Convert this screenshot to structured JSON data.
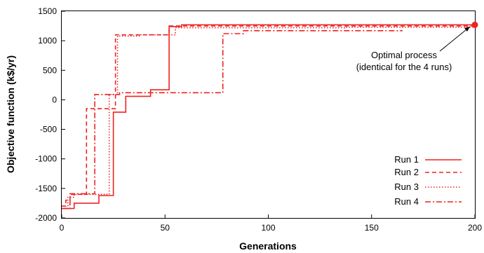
{
  "chart_data": {
    "type": "line",
    "title": "",
    "xlabel": "Generations",
    "ylabel": "Objective function (k$/yr)",
    "xlim": [
      0,
      200
    ],
    "ylim": [
      -2000,
      1500
    ],
    "xticks": [
      0,
      50,
      100,
      150,
      200
    ],
    "yticks": [
      -2000,
      -1500,
      -1000,
      -500,
      0,
      500,
      1000,
      1500
    ],
    "grid": false,
    "legend_position": "bottom-right",
    "line_color": "#ee2222",
    "series": [
      {
        "name": "Run 1",
        "dash": "solid",
        "x": [
          0,
          6,
          6,
          18,
          18,
          25,
          25,
          31,
          31,
          43,
          43,
          52,
          52,
          58,
          58,
          200
        ],
        "y": [
          -1840,
          -1840,
          -1750,
          -1750,
          -1620,
          -1620,
          -210,
          -210,
          60,
          60,
          170,
          170,
          1240,
          1240,
          1270,
          1270
        ]
      },
      {
        "name": "Run 2",
        "dash": "dashed",
        "x": [
          0,
          2,
          2,
          4,
          4,
          12,
          12,
          26,
          26,
          35,
          35,
          52,
          52,
          200
        ],
        "y": [
          -1800,
          -1800,
          -1700,
          -1700,
          -1600,
          -1600,
          -150,
          -150,
          1100,
          1100,
          1100,
          1100,
          1250,
          1250
        ]
      },
      {
        "name": "Run 3",
        "dash": "dotted",
        "x": [
          0,
          3,
          3,
          6,
          6,
          23,
          23,
          27,
          27,
          38,
          38,
          55,
          55,
          137,
          137,
          200
        ],
        "y": [
          -1840,
          -1840,
          -1650,
          -1650,
          -1600,
          -1600,
          90,
          90,
          1080,
          1080,
          1100,
          1100,
          1220,
          1220,
          1230,
          1230
        ]
      },
      {
        "name": "Run 4",
        "dash": "dashdot",
        "x": [
          0,
          4,
          4,
          16,
          16,
          28,
          28,
          78,
          78,
          88,
          88,
          165
        ],
        "y": [
          -1840,
          -1840,
          -1590,
          -1590,
          90,
          90,
          120,
          120,
          1120,
          1120,
          1170,
          1170
        ]
      }
    ],
    "annotation": {
      "lines": [
        "Optimal process",
        "(identical for the 4 runs)"
      ],
      "point": {
        "x": 200,
        "y": 1270
      },
      "marker_color": "#ee2222"
    }
  }
}
